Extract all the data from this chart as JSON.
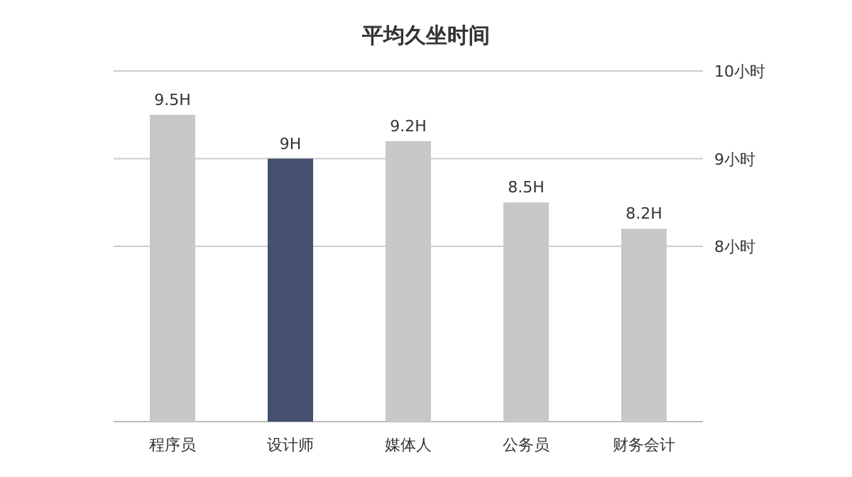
{
  "chart_data": {
    "type": "bar",
    "title": "平均久坐时间",
    "categories": [
      "程序员",
      "设计师",
      "媒体人",
      "公务员",
      "财务会计"
    ],
    "values": [
      9.5,
      9,
      9.2,
      8.5,
      8.2
    ],
    "value_labels": [
      "9.5H",
      "9H",
      "9.2H",
      "8.5H",
      "8.2H"
    ],
    "colors": [
      "#c8c8c8",
      "#44506e",
      "#c8c8c8",
      "#c8c8c8",
      "#c8c8c8"
    ],
    "ylim": [
      6,
      10
    ],
    "yticks": [
      {
        "value": 8,
        "label": "8小时"
      },
      {
        "value": 9,
        "label": "9小时"
      },
      {
        "value": 10,
        "label": "10小时"
      }
    ],
    "grid": "y"
  }
}
